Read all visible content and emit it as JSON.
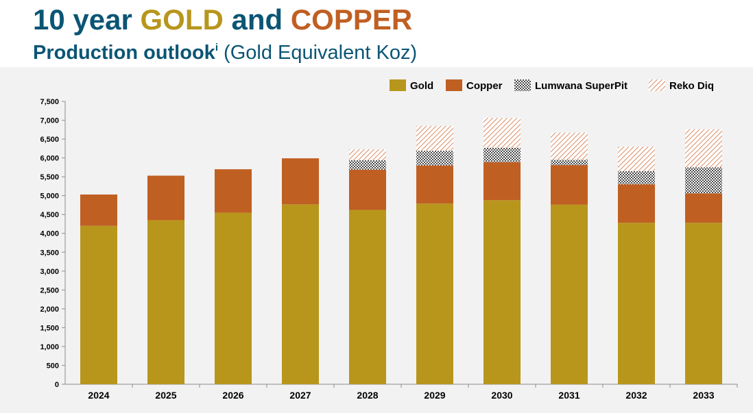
{
  "header": {
    "title_part1": "10 year ",
    "title_gold": "GOLD",
    "title_and": " and ",
    "title_copper": "COPPER",
    "subtitle_bold": "Production outlook",
    "subtitle_sup": "i",
    "subtitle_rest": " (Gold Equivalent Koz)"
  },
  "colors": {
    "title": "#0b5575",
    "gold": "#b8961c",
    "copper": "#c05f22",
    "lumwana": "#555555",
    "reko": "#d98a60",
    "background": "#f2f2f2"
  },
  "chart_data": {
    "type": "bar",
    "stacked": true,
    "categories": [
      "2024",
      "2025",
      "2026",
      "2027",
      "2028",
      "2029",
      "2030",
      "2031",
      "2032",
      "2033"
    ],
    "series": [
      {
        "name": "Gold",
        "values": [
          4200,
          4350,
          4550,
          4770,
          4620,
          4790,
          4880,
          4760,
          4280,
          4280
        ]
      },
      {
        "name": "Copper",
        "values": [
          830,
          1180,
          1150,
          1220,
          1070,
          1010,
          1010,
          1050,
          1020,
          780
        ]
      },
      {
        "name": "Lumwana SuperPit",
        "values": [
          0,
          0,
          0,
          0,
          250,
          390,
          380,
          140,
          350,
          690
        ]
      },
      {
        "name": "Reko Diq",
        "values": [
          0,
          0,
          0,
          0,
          290,
          660,
          790,
          720,
          650,
          1010
        ]
      }
    ],
    "ylim": [
      0,
      7500
    ],
    "yticks": [
      "0",
      "500",
      "1,000",
      "1,500",
      "2,000",
      "2,500",
      "3,000",
      "3,500",
      "4,000",
      "4,500",
      "5,000",
      "5,500",
      "6,000",
      "6,500",
      "7,000",
      "7,500"
    ],
    "legend_position": "top-right",
    "grid": false
  }
}
